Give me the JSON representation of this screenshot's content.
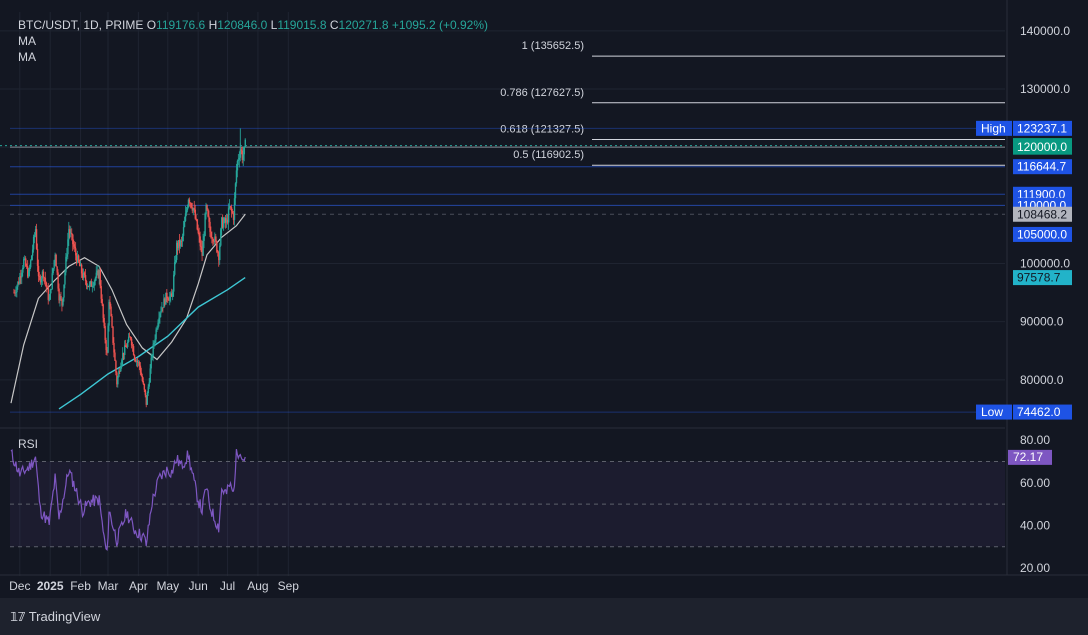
{
  "legend": {
    "symbol": "BTC/USDT, 1D, PRIME",
    "o_label": "O",
    "o_value": "119176.6",
    "h_label": "H",
    "h_value": "120846.0",
    "l_label": "L",
    "l_value": "119015.8",
    "c_label": "C",
    "c_value": "120271.8",
    "change": "+1095.2 (+0.92%)",
    "ma1": "MA",
    "ma2": "MA"
  },
  "rsi_title": "RSI",
  "brand": "TradingView",
  "colors": {
    "background": "#131722",
    "up": "#26a69a",
    "down": "#ef5350",
    "ma_slow": "#3ec7d4",
    "ma_fast": "#c7c7c7",
    "rsi_line": "#7e57c2",
    "blue_tag": "#1e53e5"
  },
  "chart_data": [
    {
      "type": "candlestick",
      "price_axis": [
        "140000.0",
        "130000.0",
        "100000.0",
        "90000.0",
        "80000.0"
      ],
      "time_axis": [
        "Dec",
        "2025",
        "Feb",
        "Mar",
        "Apr",
        "May",
        "Jun",
        "Jul",
        "Aug",
        "Sep"
      ],
      "fib_levels": [
        {
          "label": "1 (135652.5)",
          "value": 135652.5
        },
        {
          "label": "0.786 (127627.5)",
          "value": 127627.5
        },
        {
          "label": "0.618 (121327.5)",
          "value": 121327.5
        },
        {
          "label": "0.5 (116902.5)",
          "value": 116902.5
        }
      ],
      "price_tags": [
        {
          "text": "High",
          "value": "123237.1",
          "price": 123237.1,
          "style": "high"
        },
        {
          "text": "",
          "value": "120271.8",
          "price": 120271.8,
          "style": "green"
        },
        {
          "text": "",
          "value": "120000.0",
          "price": 120000.0,
          "style": "green"
        },
        {
          "text": "",
          "value": "116644.7",
          "price": 116644.7,
          "style": "blue"
        },
        {
          "text": "",
          "value": "111900.0",
          "price": 111900.0,
          "style": "blue"
        },
        {
          "text": "",
          "value": "110000.0",
          "price": 110000.0,
          "style": "blue"
        },
        {
          "text": "",
          "value": "108468.2",
          "price": 108468.2,
          "style": "gray"
        },
        {
          "text": "",
          "value": "105000.0",
          "price": 105000.0,
          "style": "blue"
        },
        {
          "text": "",
          "value": "97578.7",
          "price": 97578.7,
          "style": "cyan"
        },
        {
          "text": "Low",
          "value": "74462.0",
          "price": 74462.0,
          "style": "low"
        }
      ],
      "horizontal_lines": [
        123237.1,
        120000.0,
        116644.7,
        111900.0,
        110000.0,
        108468.2,
        74462.0
      ],
      "close_path": [
        [
          "2024-11-25",
          95000
        ],
        [
          "2024-11-30",
          97000
        ],
        [
          "2024-12-05",
          100500
        ],
        [
          "2024-12-10",
          98000
        ],
        [
          "2024-12-17",
          106000
        ],
        [
          "2024-12-20",
          97000
        ],
        [
          "2024-12-25",
          98500
        ],
        [
          "2024-12-31",
          93500
        ],
        [
          "2025-01-06",
          102000
        ],
        [
          "2025-01-10",
          94500
        ],
        [
          "2025-01-13",
          93000
        ],
        [
          "2025-01-20",
          106000
        ],
        [
          "2025-01-27",
          101500
        ],
        [
          "2025-02-03",
          98000
        ],
        [
          "2025-02-10",
          96000
        ],
        [
          "2025-02-20",
          98500
        ],
        [
          "2025-02-25",
          88500
        ],
        [
          "2025-02-28",
          84300
        ],
        [
          "2025-03-02",
          94000
        ],
        [
          "2025-03-10",
          79500
        ],
        [
          "2025-03-15",
          84000
        ],
        [
          "2025-03-24",
          87500
        ],
        [
          "2025-03-28",
          84000
        ],
        [
          "2025-04-02",
          82500
        ],
        [
          "2025-04-07",
          78000
        ],
        [
          "2025-04-09",
          76000
        ],
        [
          "2025-04-15",
          84500
        ],
        [
          "2025-04-22",
          91500
        ],
        [
          "2025-04-30",
          94500
        ],
        [
          "2025-05-05",
          94000
        ],
        [
          "2025-05-10",
          103000
        ],
        [
          "2025-05-15",
          103500
        ],
        [
          "2025-05-22",
          111500
        ],
        [
          "2025-05-27",
          109500
        ],
        [
          "2025-06-01",
          105000
        ],
        [
          "2025-06-05",
          101500
        ],
        [
          "2025-06-09",
          109500
        ],
        [
          "2025-06-13",
          105500
        ],
        [
          "2025-06-17",
          104500
        ],
        [
          "2025-06-22",
          101500
        ],
        [
          "2025-06-25",
          107000
        ],
        [
          "2025-06-30",
          107000
        ],
        [
          "2025-07-03",
          109500
        ],
        [
          "2025-07-07",
          108200
        ],
        [
          "2025-07-10",
          116000
        ],
        [
          "2025-07-11",
          117500
        ],
        [
          "2025-07-14",
          119800
        ],
        [
          "2025-07-16",
          118500
        ],
        [
          "2025-07-18",
          119176.6
        ],
        [
          "2025-07-19",
          120271.8
        ]
      ],
      "ma_fast": [
        [
          "2024-11-22",
          76000
        ],
        [
          "2024-12-05",
          86000
        ],
        [
          "2024-12-20",
          94000
        ],
        [
          "2025-01-05",
          97000
        ],
        [
          "2025-01-20",
          99500
        ],
        [
          "2025-02-05",
          101000
        ],
        [
          "2025-02-20",
          99500
        ],
        [
          "2025-03-05",
          95500
        ],
        [
          "2025-03-20",
          89500
        ],
        [
          "2025-04-05",
          85500
        ],
        [
          "2025-04-20",
          83500
        ],
        [
          "2025-05-05",
          86500
        ],
        [
          "2025-05-20",
          90500
        ],
        [
          "2025-06-01",
          96500
        ],
        [
          "2025-06-10",
          101500
        ],
        [
          "2025-06-25",
          104500
        ],
        [
          "2025-07-10",
          106500
        ],
        [
          "2025-07-19",
          108468.2
        ]
      ],
      "ma_slow": [
        [
          "2025-01-10",
          75000
        ],
        [
          "2025-02-01",
          77500
        ],
        [
          "2025-03-01",
          81000
        ],
        [
          "2025-04-01",
          84000
        ],
        [
          "2025-05-01",
          87500
        ],
        [
          "2025-06-01",
          92500
        ],
        [
          "2025-07-01",
          95500
        ],
        [
          "2025-07-19",
          97578.7
        ]
      ],
      "rsi": {
        "axis": [
          "80.00",
          "60.00",
          "40.00",
          "20.00"
        ],
        "levels": [
          70,
          50,
          30
        ],
        "last": "72.17",
        "path": [
          [
            "2024-11-22",
            74
          ],
          [
            "2024-12-01",
            64
          ],
          [
            "2024-12-10",
            67
          ],
          [
            "2024-12-17",
            72
          ],
          [
            "2024-12-22",
            47
          ],
          [
            "2024-12-31",
            41
          ],
          [
            "2025-01-06",
            62
          ],
          [
            "2025-01-10",
            43
          ],
          [
            "2025-01-20",
            66
          ],
          [
            "2025-01-27",
            57
          ],
          [
            "2025-02-03",
            47
          ],
          [
            "2025-02-10",
            51
          ],
          [
            "2025-02-20",
            52
          ],
          [
            "2025-02-25",
            34
          ],
          [
            "2025-02-28",
            26
          ],
          [
            "2025-03-02",
            47
          ],
          [
            "2025-03-10",
            33
          ],
          [
            "2025-03-20",
            46
          ],
          [
            "2025-03-28",
            38
          ],
          [
            "2025-04-07",
            34
          ],
          [
            "2025-04-09",
            31
          ],
          [
            "2025-04-15",
            51
          ],
          [
            "2025-04-22",
            62
          ],
          [
            "2025-04-30",
            66
          ],
          [
            "2025-05-05",
            65
          ],
          [
            "2025-05-10",
            71
          ],
          [
            "2025-05-15",
            68
          ],
          [
            "2025-05-22",
            73
          ],
          [
            "2025-05-27",
            62
          ],
          [
            "2025-06-01",
            52
          ],
          [
            "2025-06-05",
            47
          ],
          [
            "2025-06-09",
            58
          ],
          [
            "2025-06-13",
            49
          ],
          [
            "2025-06-17",
            44
          ],
          [
            "2025-06-22",
            39
          ],
          [
            "2025-06-25",
            57
          ],
          [
            "2025-06-30",
            55
          ],
          [
            "2025-07-03",
            59
          ],
          [
            "2025-07-07",
            55
          ],
          [
            "2025-07-10",
            73
          ],
          [
            "2025-07-14",
            76
          ],
          [
            "2025-07-16",
            71
          ],
          [
            "2025-07-19",
            72.17
          ]
        ]
      }
    }
  ]
}
